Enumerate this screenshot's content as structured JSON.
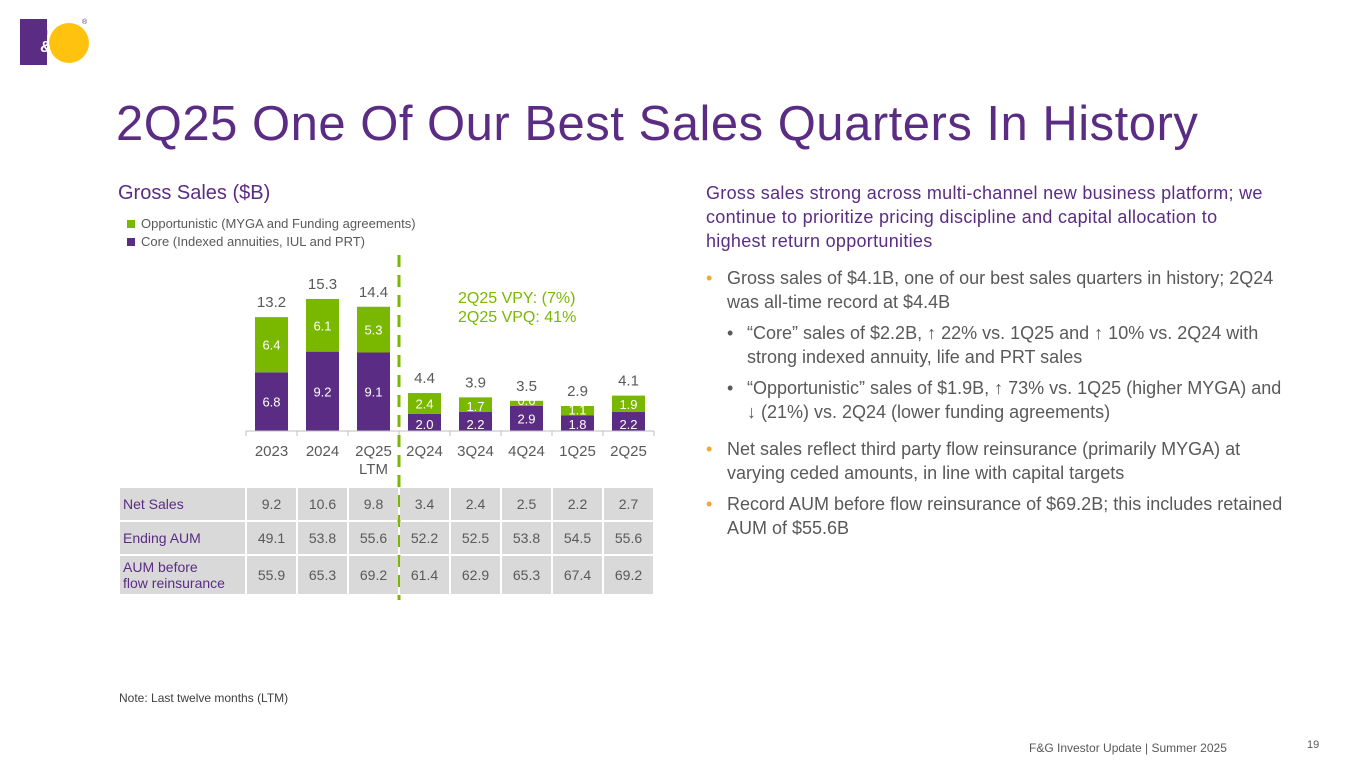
{
  "logo": {
    "text": "F&G",
    "mark": "®"
  },
  "title": "2Q25 One Of Our Best Sales Quarters In History",
  "chart_title": "Gross Sales ($B)",
  "legend": {
    "opportunistic": "Opportunistic (MYGA and Funding agreements)",
    "core": "Core (Indexed annuities, IUL and PRT)"
  },
  "annotation": {
    "line1": "2Q25 VPY: (7%)",
    "line2": "2Q25 VPQ: 41%"
  },
  "colors": {
    "core": "#5b2c83",
    "opportunistic": "#7ab800",
    "title": "#5b2c83",
    "bullet_accent": "#f0a830",
    "divider": "#7ab800"
  },
  "chart_data": {
    "type": "bar",
    "stacked": true,
    "categories": [
      [
        "2023"
      ],
      [
        "2024"
      ],
      [
        "2Q25",
        "LTM"
      ],
      [
        "2Q24"
      ],
      [
        "3Q24"
      ],
      [
        "4Q24"
      ],
      [
        "1Q25"
      ],
      [
        "2Q25"
      ]
    ],
    "series": [
      {
        "name": "Core (Indexed annuities, IUL and PRT)",
        "values": [
          6.8,
          9.2,
          9.1,
          2.0,
          2.2,
          2.9,
          1.8,
          2.2
        ],
        "labels": [
          "6.8",
          "9.2",
          "9.1",
          "2.0",
          "2.2",
          "2.9",
          "1.8",
          "2.2"
        ]
      },
      {
        "name": "Opportunistic (MYGA and Funding agreements)",
        "values": [
          6.4,
          6.1,
          5.3,
          2.4,
          1.7,
          0.6,
          1.1,
          1.9
        ],
        "labels": [
          "6.4",
          "6.1",
          "5.3",
          "2.4",
          "1.7",
          "0.6",
          "1.1",
          "1.9"
        ]
      }
    ],
    "totals": [
      "13.2",
      "15.3",
      "14.4",
      "4.4",
      "3.9",
      "3.5",
      "2.9",
      "4.1"
    ],
    "ylim": [
      0,
      15.3
    ],
    "title": "Gross Sales ($B)",
    "xlabel": "",
    "ylabel": ""
  },
  "table": {
    "rows": [
      {
        "label": "Net Sales",
        "values": [
          "9.2",
          "10.6",
          "9.8",
          "3.4",
          "2.4",
          "2.5",
          "2.2",
          "2.7"
        ]
      },
      {
        "label": "Ending AUM",
        "values": [
          "49.1",
          "53.8",
          "55.6",
          "52.2",
          "52.5",
          "53.8",
          "54.5",
          "55.6"
        ]
      },
      {
        "label_line1": "AUM before",
        "label_line2": "flow reinsurance",
        "values": [
          "55.9",
          "65.3",
          "69.2",
          "61.4",
          "62.9",
          "65.3",
          "67.4",
          "69.2"
        ]
      }
    ]
  },
  "right_panel": {
    "heading": "Gross sales strong across multi-channel new business platform; we continue to prioritize pricing discipline and capital allocation to highest return opportunities",
    "bullet_char": "•",
    "bullets": [
      "Gross sales of $4.1B, one of our best sales quarters in history; 2Q24 was all-time record at $4.4B",
      "“Core” sales of $2.2B, ↑ 22% vs. 1Q25 and ↑ 10% vs. 2Q24 with strong indexed annuity, life and PRT sales",
      "“Opportunistic” sales of $1.9B, ↑ 73% vs. 1Q25 (higher MYGA) and ↓ (21%) vs. 2Q24 (lower funding agreements)",
      "Net sales reflect third party flow reinsurance (primarily MYGA) at varying ceded amounts, in line with capital targets",
      "Record AUM before flow reinsurance of $69.2B; this includes retained AUM of $55.6B"
    ]
  },
  "note": "Note: Last twelve months (LTM)",
  "footer": "F&G Investor Update |  Summer 2025",
  "page_number": "19"
}
